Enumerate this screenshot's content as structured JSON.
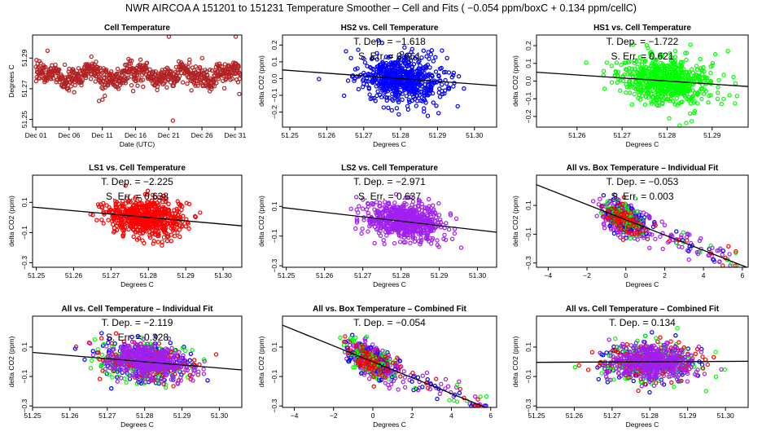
{
  "main_title": "NWR   AIRCOA A   151201 to 151231   Temperature Smoother – Cell and Fits ( −0.054  ppm/boxC +  0.134  ppm/cellC)",
  "colors": {
    "HS2": "#0000ff",
    "HS1": "#00ff00",
    "LS1": "#ff0000",
    "LS2": "#a020f0",
    "cell": "#b22222",
    "fit": "#000000"
  },
  "chart_data": [
    {
      "id": "p1",
      "type": "scatter",
      "title": "Cell Temperature",
      "xlabel": "Date (UTC)",
      "ylabel": "Degrees C",
      "xlim": [
        0,
        31.5
      ],
      "ylim": [
        51.245,
        51.305
      ],
      "x_ticks": [
        {
          "v": 0.5,
          "label": "Dec 01"
        },
        {
          "v": 5.5,
          "label": "Dec 06"
        },
        {
          "v": 10.5,
          "label": "Dec 11"
        },
        {
          "v": 15.5,
          "label": "Dec 16"
        },
        {
          "v": 20.5,
          "label": "Dec 21"
        },
        {
          "v": 25.5,
          "label": "Dec 26"
        },
        {
          "v": 30.5,
          "label": "Dec 31"
        }
      ],
      "y_ticks": [
        {
          "v": 51.25,
          "label": "51.25"
        },
        {
          "v": 51.27,
          "label": "51.27"
        },
        {
          "v": 51.29,
          "label": "51.29"
        }
      ],
      "series": [
        {
          "name": "cell",
          "color": "#b22222",
          "gen": "time",
          "n": 700,
          "seed": 1,
          "mean": 51.279,
          "sd": 0.006
        }
      ]
    },
    {
      "id": "p2",
      "type": "scatter",
      "title": "HS2 vs. Cell Temperature",
      "xlabel": "Degrees C",
      "ylabel": "delta CO2 (ppm)",
      "xlim": [
        51.248,
        51.306
      ],
      "ylim": [
        -0.29,
        0.26
      ],
      "x_ticks": [
        {
          "v": 51.25,
          "label": "51.25"
        },
        {
          "v": 51.26,
          "label": "51.26"
        },
        {
          "v": 51.27,
          "label": "51.27"
        },
        {
          "v": 51.28,
          "label": "51.28"
        },
        {
          "v": 51.29,
          "label": "51.29"
        },
        {
          "v": 51.3,
          "label": "51.30"
        }
      ],
      "y_ticks": [
        {
          "v": -0.2,
          "label": "−0.2"
        },
        {
          "v": -0.1,
          "label": "−0.1"
        },
        {
          "v": 0.0,
          "label": "0.0"
        },
        {
          "v": 0.1,
          "label": "0.1"
        },
        {
          "v": 0.2,
          "label": "0.2"
        }
      ],
      "fit": {
        "slope": -1.618,
        "x0": 51.28,
        "y0": 0.0
      },
      "annotations": [
        "T. Dep. =  −1.618",
        "S. Err. =  0.661"
      ],
      "series": [
        {
          "name": "HS2",
          "color": "#0000ff",
          "gen": "cloud",
          "n": 650,
          "seed": 2,
          "cx": 51.28,
          "sx": 0.0055,
          "slope": -1.618,
          "cy": 0.0,
          "sy": 0.07
        }
      ]
    },
    {
      "id": "p3",
      "type": "scatter",
      "title": "HS1 vs. Cell Temperature",
      "xlabel": "Degrees C",
      "ylabel": "delta CO2 (ppm)",
      "xlim": [
        51.251,
        51.298
      ],
      "ylim": [
        -0.26,
        0.26
      ],
      "x_ticks": [
        {
          "v": 51.26,
          "label": "51.26"
        },
        {
          "v": 51.27,
          "label": "51.27"
        },
        {
          "v": 51.28,
          "label": "51.28"
        },
        {
          "v": 51.29,
          "label": "51.29"
        }
      ],
      "y_ticks": [
        {
          "v": -0.2,
          "label": "−0.2"
        },
        {
          "v": -0.1,
          "label": "−0.1"
        },
        {
          "v": 0.0,
          "label": "0.0"
        },
        {
          "v": 0.1,
          "label": "0.1"
        },
        {
          "v": 0.2,
          "label": "0.2"
        }
      ],
      "fit": {
        "slope": -1.722,
        "x0": 51.28,
        "y0": 0.0
      },
      "annotations": [
        "T. Dep. =  −1.722",
        "S. Err. =  0.621"
      ],
      "series": [
        {
          "name": "HS1",
          "color": "#00ff00",
          "gen": "cloud",
          "n": 650,
          "seed": 3,
          "cx": 51.28,
          "sx": 0.005,
          "slope": -1.722,
          "cy": 0.0,
          "sy": 0.07
        }
      ]
    },
    {
      "id": "p4",
      "type": "scatter",
      "title": "LS1 vs. Cell Temperature",
      "xlabel": "Degrees C",
      "ylabel": "delta CO2 (ppm)",
      "xlim": [
        51.249,
        51.305
      ],
      "ylim": [
        -0.33,
        0.28
      ],
      "x_ticks": [
        {
          "v": 51.25,
          "label": "51.25"
        },
        {
          "v": 51.26,
          "label": "51.26"
        },
        {
          "v": 51.27,
          "label": "51.27"
        },
        {
          "v": 51.28,
          "label": "51.28"
        },
        {
          "v": 51.29,
          "label": "51.29"
        },
        {
          "v": 51.3,
          "label": "51.30"
        }
      ],
      "y_ticks": [
        {
          "v": -0.3,
          "label": "−0.3"
        },
        {
          "v": -0.1,
          "label": "−0.1"
        },
        {
          "v": 0.1,
          "label": "0.1"
        }
      ],
      "fit": {
        "slope": -2.225,
        "x0": 51.28,
        "y0": 0.0
      },
      "annotations": [
        "T. Dep. =  −2.225",
        "S. Err. =  0.638"
      ],
      "series": [
        {
          "name": "LS1",
          "color": "#ff0000",
          "gen": "cloud",
          "n": 650,
          "seed": 4,
          "cx": 51.279,
          "sx": 0.005,
          "slope": -2.225,
          "cy": 0.0,
          "sy": 0.06
        }
      ]
    },
    {
      "id": "p5",
      "type": "scatter",
      "title": "LS2 vs. Cell Temperature",
      "xlabel": "Degrees C",
      "ylabel": "delta CO2 (ppm)",
      "xlim": [
        51.249,
        51.305
      ],
      "ylim": [
        -0.31,
        0.31
      ],
      "x_ticks": [
        {
          "v": 51.25,
          "label": "51.25"
        },
        {
          "v": 51.26,
          "label": "51.26"
        },
        {
          "v": 51.27,
          "label": "51.27"
        },
        {
          "v": 51.28,
          "label": "51.28"
        },
        {
          "v": 51.29,
          "label": "51.29"
        },
        {
          "v": 51.3,
          "label": "51.30"
        }
      ],
      "y_ticks": [
        {
          "v": -0.3,
          "label": "−0.3"
        },
        {
          "v": -0.1,
          "label": "−0.1"
        },
        {
          "v": 0.1,
          "label": "0.1"
        }
      ],
      "fit": {
        "slope": -2.971,
        "x0": 51.28,
        "y0": 0.0
      },
      "annotations": [
        "T. Dep. =  −2.971",
        "S. Err. =  0.637"
      ],
      "series": [
        {
          "name": "LS2",
          "color": "#a020f0",
          "gen": "cloud",
          "n": 650,
          "seed": 5,
          "cx": 51.281,
          "sx": 0.005,
          "slope": -2.971,
          "cy": 0.0,
          "sy": 0.06
        }
      ]
    },
    {
      "id": "p6",
      "type": "scatter",
      "title": "All vs. Box Temperature – Individual Fit",
      "xlabel": "Degrees C",
      "ylabel": "delta CO2 (ppm)",
      "xlim": [
        -4.6,
        6.3
      ],
      "ylim": [
        -0.33,
        0.31
      ],
      "x_ticks": [
        {
          "v": -4,
          "label": "−4"
        },
        {
          "v": -2,
          "label": "−2"
        },
        {
          "v": 0,
          "label": "0"
        },
        {
          "v": 2,
          "label": "2"
        },
        {
          "v": 4,
          "label": "4"
        },
        {
          "v": 6,
          "label": "6"
        }
      ],
      "y_ticks": [
        {
          "v": -0.3,
          "label": "−0.3"
        },
        {
          "v": -0.1,
          "label": "−0.1"
        },
        {
          "v": 0.1,
          "label": "0.1"
        }
      ],
      "fit": {
        "slope": -0.053,
        "x0": 0,
        "y0": 0.0
      },
      "annotations": [
        "T. Dep. =  −0.053",
        "S. Err. =  0.003"
      ],
      "series": [
        {
          "name": "LS2",
          "color": "#a020f0",
          "gen": "box",
          "n": 420,
          "seed": 61,
          "slope": -0.053
        },
        {
          "name": "HS2",
          "color": "#0000ff",
          "gen": "box",
          "n": 90,
          "seed": 62,
          "slope": -0.053
        },
        {
          "name": "HS1",
          "color": "#00ff00",
          "gen": "box",
          "n": 90,
          "seed": 63,
          "slope": -0.053
        },
        {
          "name": "LS1",
          "color": "#ff0000",
          "gen": "box",
          "n": 90,
          "seed": 64,
          "slope": -0.053
        }
      ]
    },
    {
      "id": "p7",
      "type": "scatter",
      "title": "All vs. Cell Temperature – Individual Fit",
      "xlabel": "Degrees C",
      "ylabel": "delta CO2 (ppm)",
      "xlim": [
        51.25,
        51.306
      ],
      "ylim": [
        -0.31,
        0.31
      ],
      "x_ticks": [
        {
          "v": 51.25,
          "label": "51.25"
        },
        {
          "v": 51.26,
          "label": "51.26"
        },
        {
          "v": 51.27,
          "label": "51.27"
        },
        {
          "v": 51.28,
          "label": "51.28"
        },
        {
          "v": 51.29,
          "label": "51.29"
        },
        {
          "v": 51.3,
          "label": "51.30"
        }
      ],
      "y_ticks": [
        {
          "v": -0.3,
          "label": "−0.3"
        },
        {
          "v": -0.1,
          "label": "−0.1"
        },
        {
          "v": 0.1,
          "label": "0.1"
        }
      ],
      "fit": {
        "slope": -2.119,
        "x0": 51.28,
        "y0": 0.0
      },
      "annotations": [
        "T. Dep. =  −2.119",
        "S. Err. =  0.328"
      ],
      "series": [
        {
          "name": "HS2",
          "color": "#0000ff",
          "gen": "cloud",
          "n": 170,
          "seed": 71,
          "cx": 51.28,
          "sx": 0.006,
          "slope": -1.6,
          "cy": 0.0,
          "sy": 0.07
        },
        {
          "name": "HS1",
          "color": "#00ff00",
          "gen": "cloud",
          "n": 170,
          "seed": 72,
          "cx": 51.28,
          "sx": 0.006,
          "slope": -1.7,
          "cy": 0.0,
          "sy": 0.07
        },
        {
          "name": "LS1",
          "color": "#ff0000",
          "gen": "cloud",
          "n": 170,
          "seed": 73,
          "cx": 51.28,
          "sx": 0.006,
          "slope": -2.2,
          "cy": 0.0,
          "sy": 0.06
        },
        {
          "name": "LS2",
          "color": "#a020f0",
          "gen": "cloud",
          "n": 420,
          "seed": 74,
          "cx": 51.281,
          "sx": 0.0055,
          "slope": -3.0,
          "cy": 0.0,
          "sy": 0.06
        }
      ]
    },
    {
      "id": "p8",
      "type": "scatter",
      "title": "All vs. Box Temperature – Combined Fit",
      "xlabel": "Degrees C",
      "ylabel": "delta CO2 (ppm)",
      "xlim": [
        -4.6,
        6.3
      ],
      "ylim": [
        -0.31,
        0.31
      ],
      "x_ticks": [
        {
          "v": -4,
          "label": "−4"
        },
        {
          "v": -2,
          "label": "−2"
        },
        {
          "v": 0,
          "label": "0"
        },
        {
          "v": 2,
          "label": "2"
        },
        {
          "v": 4,
          "label": "4"
        },
        {
          "v": 6,
          "label": "6"
        }
      ],
      "y_ticks": [
        {
          "v": -0.3,
          "label": "−0.3"
        },
        {
          "v": -0.1,
          "label": "−0.1"
        },
        {
          "v": 0.1,
          "label": "0.1"
        }
      ],
      "fit": {
        "slope": -0.054,
        "x0": 0,
        "y0": 0.0
      },
      "annotations": [
        "T. Dep. =  −0.054"
      ],
      "series": [
        {
          "name": "LS2",
          "color": "#a020f0",
          "gen": "box",
          "n": 420,
          "seed": 81,
          "slope": -0.054
        },
        {
          "name": "HS2",
          "color": "#0000ff",
          "gen": "box",
          "n": 90,
          "seed": 82,
          "slope": -0.054
        },
        {
          "name": "HS1",
          "color": "#00ff00",
          "gen": "box",
          "n": 90,
          "seed": 83,
          "slope": -0.054
        },
        {
          "name": "LS1",
          "color": "#ff0000",
          "gen": "box",
          "n": 90,
          "seed": 84,
          "slope": -0.054
        }
      ]
    },
    {
      "id": "p9",
      "type": "scatter",
      "title": "All vs. Cell Temperature – Combined Fit",
      "xlabel": "Degrees C",
      "ylabel": "delta CO2 (ppm)",
      "xlim": [
        51.25,
        51.306
      ],
      "ylim": [
        -0.31,
        0.31
      ],
      "x_ticks": [
        {
          "v": 51.25,
          "label": "51.25"
        },
        {
          "v": 51.26,
          "label": "51.26"
        },
        {
          "v": 51.27,
          "label": "51.27"
        },
        {
          "v": 51.28,
          "label": "51.28"
        },
        {
          "v": 51.29,
          "label": "51.29"
        },
        {
          "v": 51.3,
          "label": "51.30"
        }
      ],
      "y_ticks": [
        {
          "v": -0.3,
          "label": "−0.3"
        },
        {
          "v": -0.1,
          "label": "−0.1"
        },
        {
          "v": 0.1,
          "label": "0.1"
        }
      ],
      "fit": {
        "slope": 0.134,
        "x0": 51.28,
        "y0": 0.0
      },
      "annotations": [
        "T. Dep. =  0.134"
      ],
      "series": [
        {
          "name": "HS2",
          "color": "#0000ff",
          "gen": "cloud",
          "n": 170,
          "seed": 91,
          "cx": 51.28,
          "sx": 0.006,
          "slope": 0.0,
          "cy": 0.0,
          "sy": 0.07
        },
        {
          "name": "HS1",
          "color": "#00ff00",
          "gen": "cloud",
          "n": 170,
          "seed": 92,
          "cx": 51.28,
          "sx": 0.006,
          "slope": 0.0,
          "cy": 0.0,
          "sy": 0.07
        },
        {
          "name": "LS1",
          "color": "#ff0000",
          "gen": "cloud",
          "n": 170,
          "seed": 93,
          "cx": 51.28,
          "sx": 0.006,
          "slope": 0.0,
          "cy": 0.0,
          "sy": 0.06
        },
        {
          "name": "LS2",
          "color": "#a020f0",
          "gen": "cloud",
          "n": 420,
          "seed": 94,
          "cx": 51.281,
          "sx": 0.0055,
          "slope": 0.0,
          "cy": 0.0,
          "sy": 0.06
        }
      ]
    }
  ]
}
